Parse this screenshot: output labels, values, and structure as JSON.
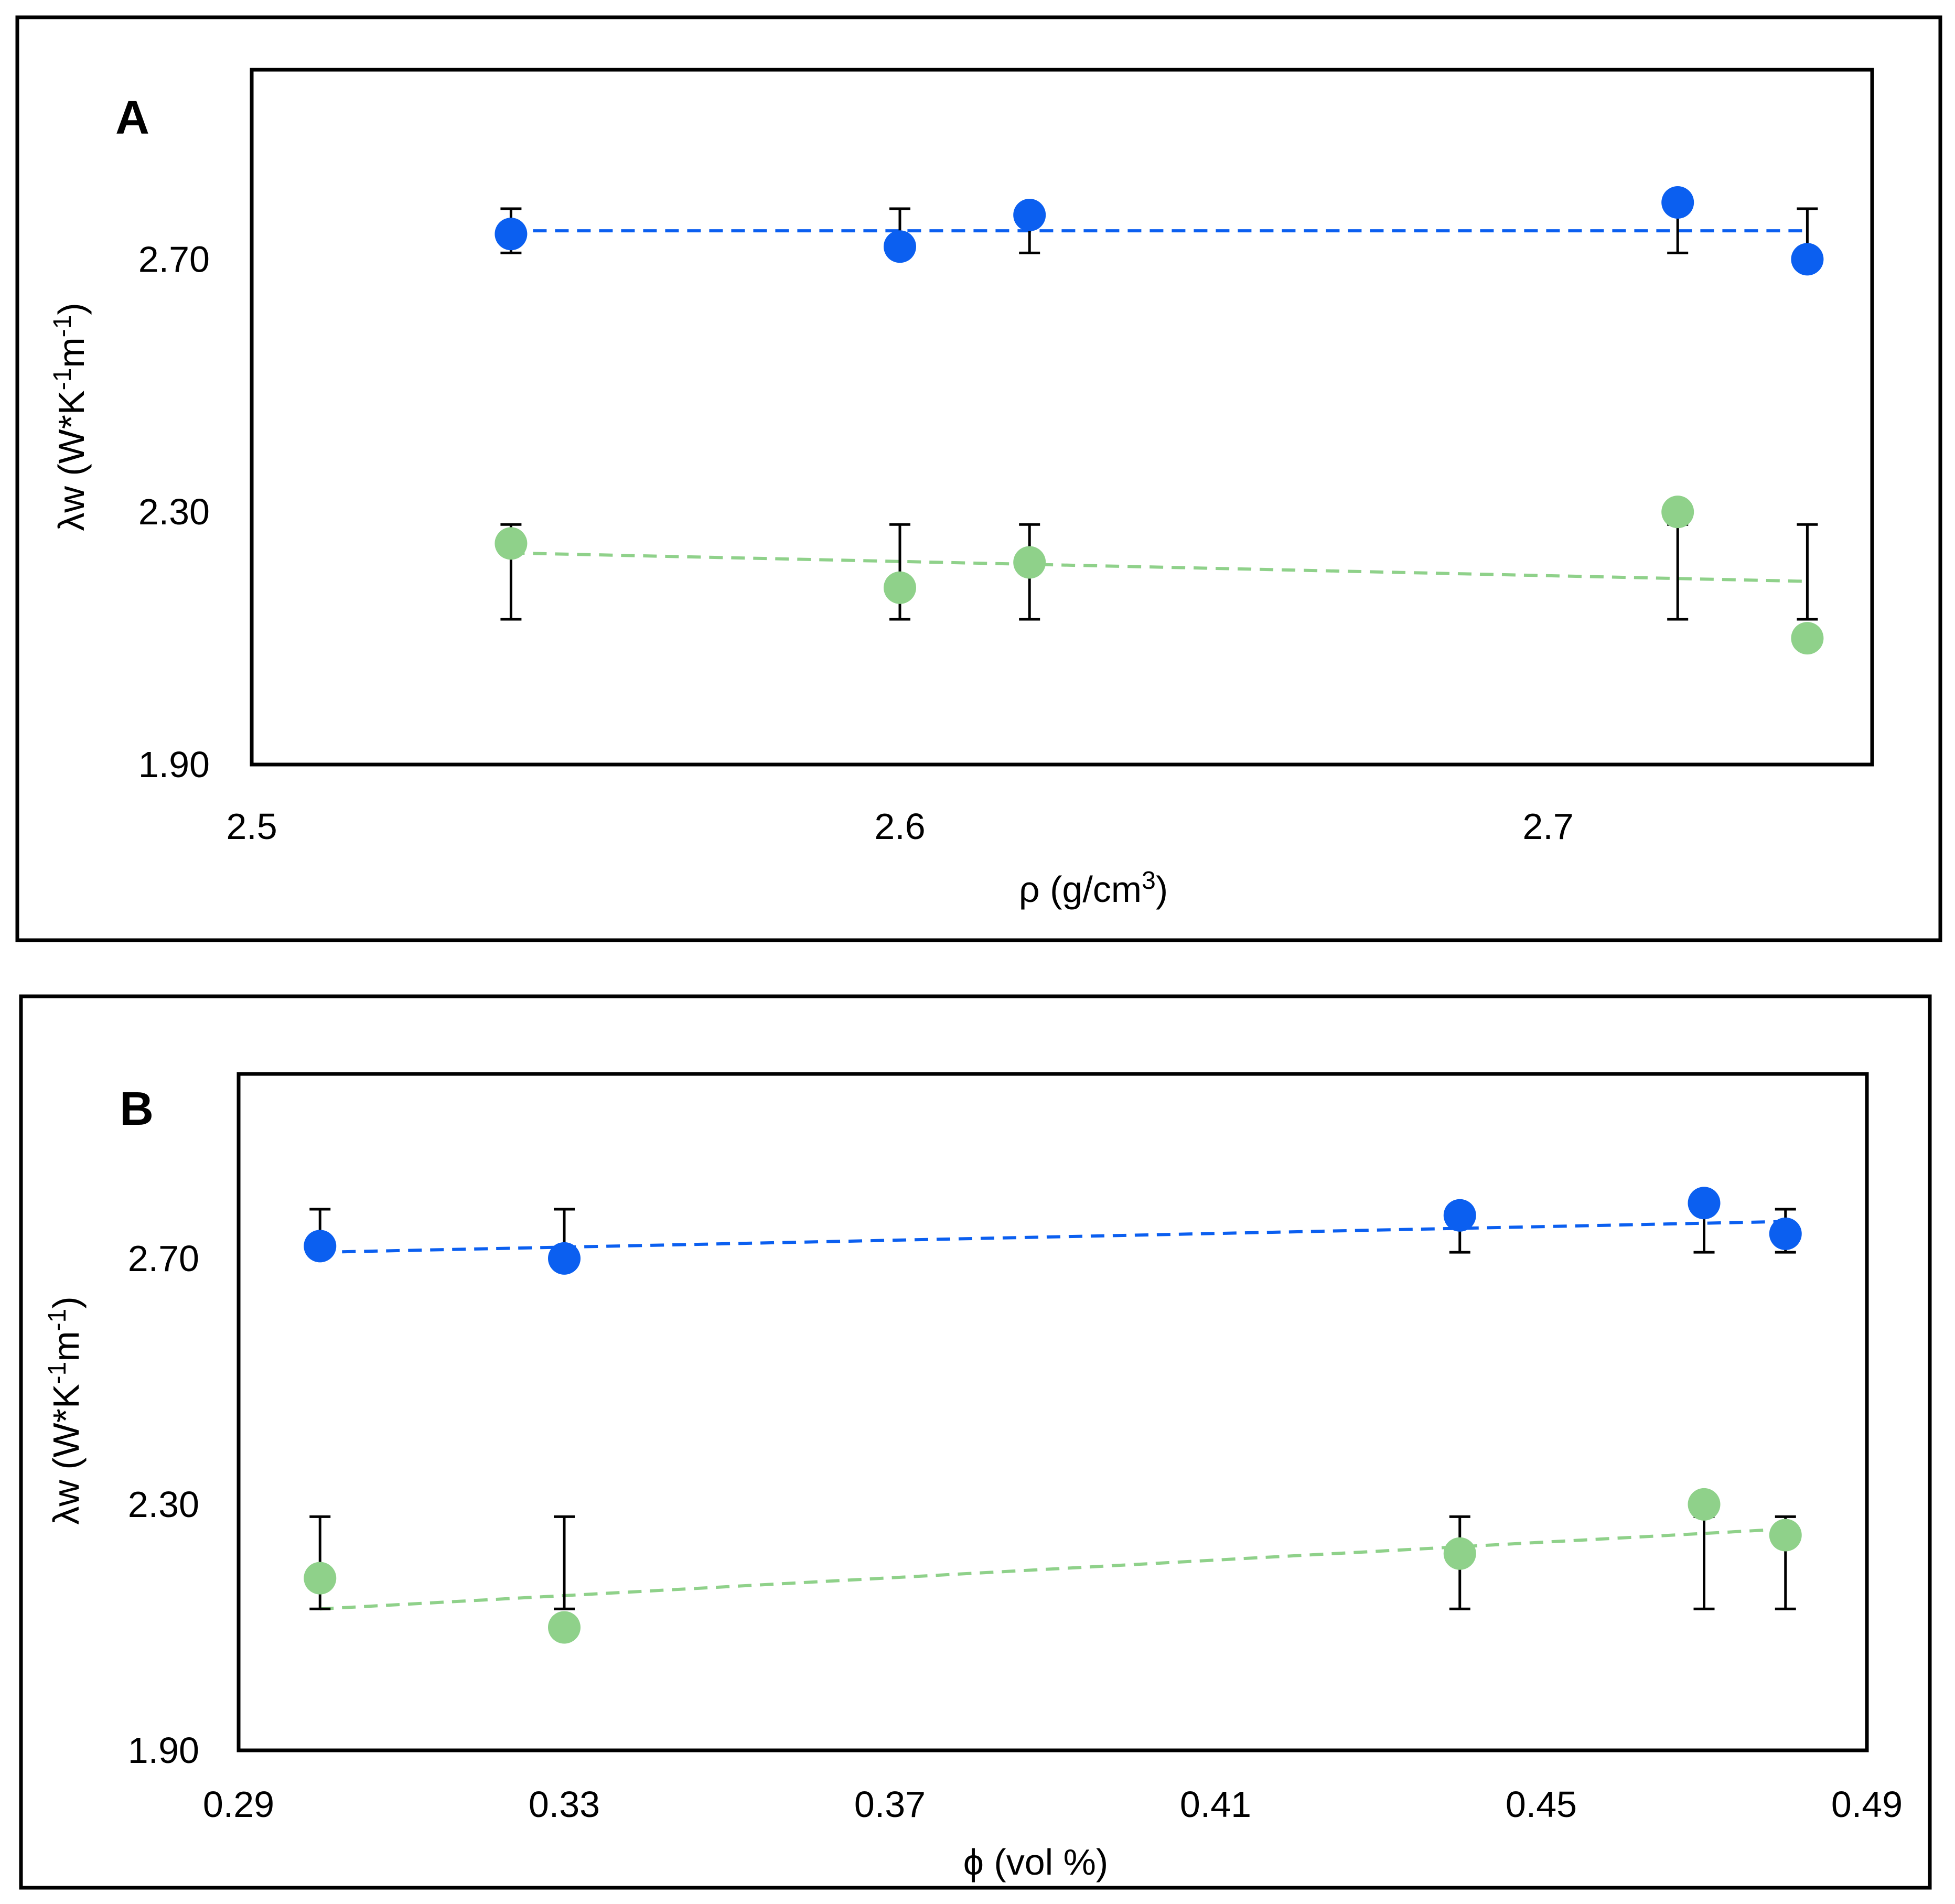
{
  "chart_data": [
    {
      "type": "scatter",
      "panel_label": "A",
      "title": "",
      "xlabel": "ρ (g/cm",
      "xlabel_sup": "3",
      "xlabel_end": ")",
      "ylabel": "λw (W*K",
      "ylabel_sup1": "-1",
      "ylabel_mid": "m",
      "ylabel_sup2": "-1",
      "ylabel_end": ")",
      "xlim": [
        2.5,
        2.75
      ],
      "ylim": [
        1.9,
        3.0
      ],
      "xticks": [
        2.5,
        2.6,
        2.7
      ],
      "xtick_labels": [
        "2.5",
        "2.6",
        "2.7"
      ],
      "yticks": [
        1.9,
        2.3,
        2.7
      ],
      "ytick_labels": [
        "1.90",
        "2.30",
        "2.70"
      ],
      "series": [
        {
          "name": "blue",
          "color": "#0b5ff0",
          "x": [
            2.54,
            2.6,
            2.62,
            2.72,
            2.74
          ],
          "y": [
            2.74,
            2.72,
            2.77,
            2.79,
            2.7
          ],
          "err": [
            [
              2.71,
              2.78
            ],
            [
              2.71,
              2.78
            ],
            [
              2.71,
              2.78
            ],
            [
              2.71,
              2.78
            ],
            [
              2.71,
              2.78
            ]
          ],
          "trend": [
            [
              2.54,
              2.745
            ],
            [
              2.74,
              2.745
            ]
          ]
        },
        {
          "name": "green",
          "color": "#8fd18a",
          "x": [
            2.54,
            2.6,
            2.62,
            2.72,
            2.74
          ],
          "y": [
            2.25,
            2.18,
            2.22,
            2.3,
            2.1
          ],
          "err": [
            [
              2.13,
              2.28
            ],
            [
              2.13,
              2.28
            ],
            [
              2.13,
              2.28
            ],
            [
              2.13,
              2.28
            ],
            [
              2.13,
              2.28
            ]
          ],
          "trend": [
            [
              2.54,
              2.235
            ],
            [
              2.74,
              2.19
            ]
          ]
        }
      ]
    },
    {
      "type": "scatter",
      "panel_label": "B",
      "title": "",
      "xlabel": "ϕ (vol %)",
      "ylabel": "λw (W*K",
      "ylabel_sup1": "-1",
      "ylabel_mid": "m",
      "ylabel_sup2": "-1",
      "ylabel_end": ")",
      "xlim": [
        0.29,
        0.49
      ],
      "ylim": [
        1.9,
        3.0
      ],
      "xticks": [
        0.29,
        0.33,
        0.37,
        0.41,
        0.45,
        0.49
      ],
      "xtick_labels": [
        "0.29",
        "0.33",
        "0.37",
        "0.41",
        "0.45",
        "0.49"
      ],
      "yticks": [
        1.9,
        2.3,
        2.7
      ],
      "ytick_labels": [
        "1.90",
        "2.30",
        "2.70"
      ],
      "series": [
        {
          "name": "blue",
          "color": "#0b5ff0",
          "x": [
            0.3,
            0.33,
            0.44,
            0.47,
            0.48
          ],
          "y": [
            2.72,
            2.7,
            2.77,
            2.79,
            2.74
          ],
          "err": [
            [
              2.71,
              2.78
            ],
            [
              2.71,
              2.78
            ],
            [
              2.71,
              2.78
            ],
            [
              2.71,
              2.78
            ],
            [
              2.71,
              2.78
            ]
          ],
          "trend": [
            [
              0.3,
              2.71
            ],
            [
              0.48,
              2.76
            ]
          ]
        },
        {
          "name": "green",
          "color": "#8fd18a",
          "x": [
            0.3,
            0.33,
            0.44,
            0.47,
            0.48
          ],
          "y": [
            2.18,
            2.1,
            2.22,
            2.3,
            2.25
          ],
          "err": [
            [
              2.13,
              2.28
            ],
            [
              2.13,
              2.28
            ],
            [
              2.13,
              2.28
            ],
            [
              2.13,
              2.28
            ],
            [
              2.13,
              2.28
            ]
          ],
          "trend": [
            [
              0.3,
              2.13
            ],
            [
              0.48,
              2.26
            ]
          ]
        }
      ]
    }
  ]
}
